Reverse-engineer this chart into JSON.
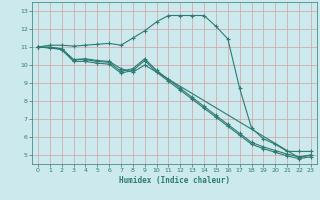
{
  "xlabel": "Humidex (Indice chaleur)",
  "xlim": [
    -0.5,
    23.5
  ],
  "ylim": [
    4.5,
    13.5
  ],
  "xticks": [
    0,
    1,
    2,
    3,
    4,
    5,
    6,
    7,
    8,
    9,
    10,
    11,
    12,
    13,
    14,
    15,
    16,
    17,
    18,
    19,
    20,
    21,
    22,
    23
  ],
  "yticks": [
    5,
    6,
    7,
    8,
    9,
    10,
    11,
    12,
    13
  ],
  "bg_color": "#cce9ee",
  "grid_color": "#b0d4da",
  "line_color": "#2d7b72",
  "curve1_x": [
    0,
    1,
    2,
    3,
    4,
    5,
    6,
    7,
    8,
    9,
    10,
    11,
    12,
    13,
    14,
    15,
    16,
    17,
    18,
    19,
    20,
    21,
    22,
    23
  ],
  "curve1_y": [
    11.0,
    11.1,
    11.1,
    11.05,
    11.1,
    11.15,
    11.2,
    11.1,
    11.5,
    11.9,
    12.4,
    12.75,
    12.75,
    12.75,
    12.75,
    12.15,
    11.45,
    8.7,
    6.5,
    5.9,
    5.6,
    5.2,
    5.2,
    5.2
  ],
  "curve2_x": [
    0,
    1,
    2,
    3,
    4,
    5,
    6,
    7,
    8,
    9,
    10,
    11,
    12,
    13,
    14,
    15,
    16,
    17,
    18,
    19,
    20,
    21,
    22,
    23
  ],
  "curve2_y": [
    11.0,
    11.0,
    10.9,
    10.3,
    10.3,
    10.2,
    10.15,
    9.65,
    9.8,
    10.35,
    9.7,
    9.2,
    8.7,
    8.2,
    7.7,
    7.2,
    6.7,
    6.2,
    5.7,
    5.45,
    5.25,
    5.05,
    4.9,
    5.0
  ],
  "curve3_x": [
    0,
    1,
    2,
    3,
    4,
    5,
    6,
    7,
    8,
    9,
    10,
    11,
    12,
    13,
    14,
    15,
    16,
    17,
    18,
    19,
    20,
    21,
    22,
    23
  ],
  "curve3_y": [
    11.0,
    10.95,
    10.85,
    10.2,
    10.2,
    10.1,
    10.05,
    9.55,
    9.7,
    10.25,
    9.6,
    9.1,
    8.6,
    8.1,
    7.6,
    7.1,
    6.6,
    6.1,
    5.6,
    5.35,
    5.15,
    4.95,
    4.8,
    4.9
  ],
  "curve4_x": [
    0,
    2,
    3,
    4,
    5,
    6,
    7,
    8,
    9,
    22,
    23
  ],
  "curve4_y": [
    11.0,
    10.9,
    10.3,
    10.35,
    10.25,
    10.2,
    9.8,
    9.6,
    10.0,
    4.85,
    5.0
  ]
}
